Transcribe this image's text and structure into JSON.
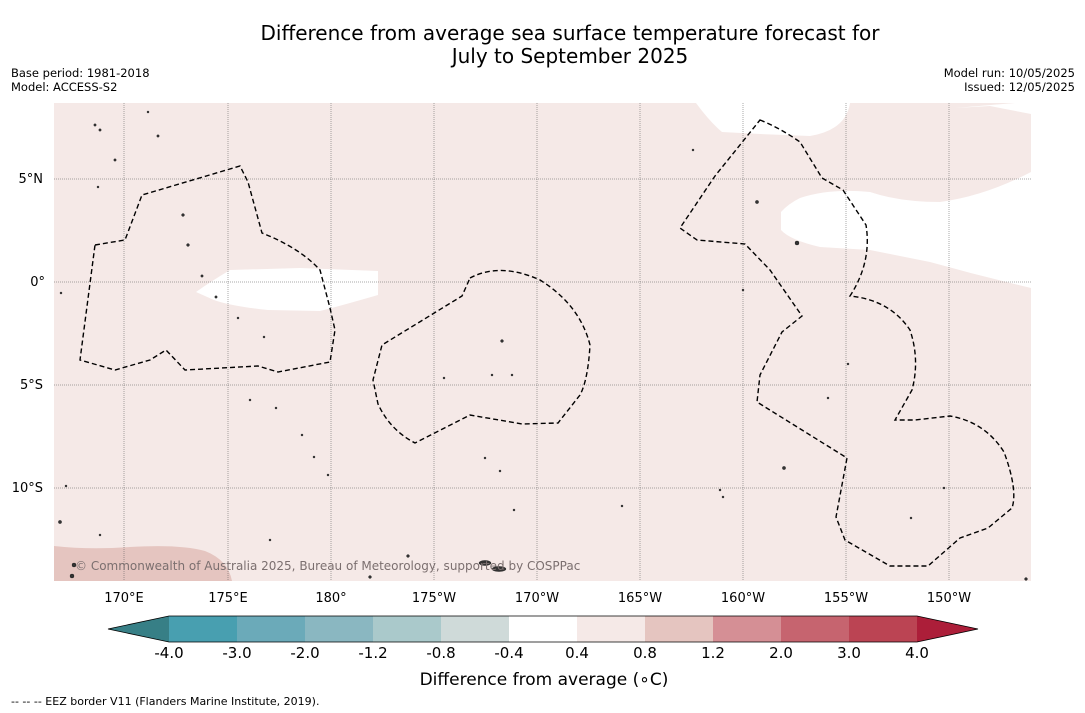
{
  "title_line1": "Difference from average sea surface temperature forecast for",
  "title_line2": "July to September 2025",
  "base_period": "Base period: 1981-2018",
  "model": "Model: ACCESS-S2",
  "model_run": "Model run: 10/05/2025",
  "issued": "Issued: 12/05/2025",
  "copyright": "© Commonwealth of Australia 2025, Bureau of Meteorology, supported by COSPPac",
  "lat_labels": [
    "5°N",
    "0°",
    "5°S",
    "10°S"
  ],
  "lon_labels": [
    "170°E",
    "175°E",
    "180°",
    "175°W",
    "170°W",
    "165°W",
    "160°W",
    "155°W",
    "150°W"
  ],
  "colorbar": {
    "label": "Difference from average (∘C)",
    "ticks": [
      "-4.0",
      "-3.0",
      "-2.0",
      "-1.2",
      "-0.8",
      "-0.4",
      "0.4",
      "0.8",
      "1.2",
      "2.0",
      "3.0",
      "4.0"
    ],
    "colors": [
      "#377f86",
      "#489fb0",
      "#6baab9",
      "#8ab7c1",
      "#aac9cb",
      "#cfdad9",
      "#ffffff",
      "#f5e9e7",
      "#e5c5c0",
      "#d58f95",
      "#c6646f",
      "#bb4453",
      "#ac1e39"
    ]
  },
  "footnote": "-- -- -- EEZ border V11 (Flanders Marine Institute, 2019).",
  "anomaly_colors": {
    "neutral": "#ffffff",
    "slight_warm": "#f5e9e7",
    "warm": "#e5c5c0",
    "land": "#2b2b2b"
  }
}
